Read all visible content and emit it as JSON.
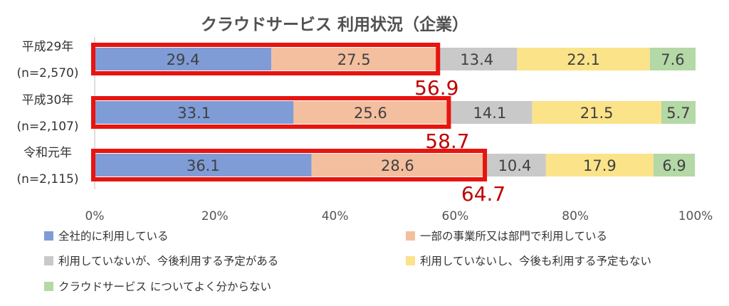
{
  "chart_data": {
    "type": "bar",
    "orientation": "horizontal",
    "stacked": true,
    "title": "クラウドサービス 利用状況（企業）",
    "categories": [
      {
        "label": "平成29年",
        "n": "(n=2,570)"
      },
      {
        "label": "平成30年",
        "n": "(n=2,107)"
      },
      {
        "label": "令和元年",
        "n": "(n=2,115)"
      }
    ],
    "series": [
      {
        "name": "全社的に利用している",
        "color": "#7f9cd6",
        "values": [
          29.4,
          33.1,
          36.1
        ]
      },
      {
        "name": "一部の事業所又は部門で利用している",
        "color": "#f4bf9f",
        "values": [
          27.5,
          25.6,
          28.6
        ]
      },
      {
        "name": "利用していないが、今後利用する予定がある",
        "color": "#c9c9c9",
        "values": [
          13.4,
          14.1,
          10.4
        ]
      },
      {
        "name": "利用していないし、今後も利用する予定もない",
        "color": "#fbe38a",
        "values": [
          22.1,
          21.5,
          17.9
        ]
      },
      {
        "name": "クラウドサービス についてよく分からない",
        "color": "#b4d8a6",
        "values": [
          7.6,
          5.7,
          6.9
        ]
      }
    ],
    "highlight_totals": [
      "56.9",
      "58.7",
      "64.7"
    ],
    "highlight_color": "#e8140f",
    "total_color": "#c00000",
    "xlim": [
      0,
      100
    ],
    "xticks": [
      "0%",
      "20%",
      "40%",
      "60%",
      "80%",
      "100%"
    ],
    "legend_position": "bottom",
    "grid": false
  }
}
